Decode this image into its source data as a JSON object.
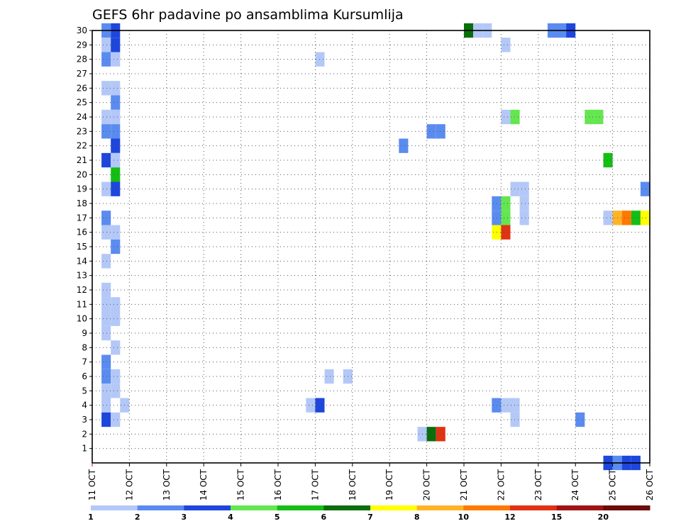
{
  "chart_data": {
    "type": "heatmap",
    "title": "GEFS 6hr padavine po ansamblima Kursumlija",
    "xlabel": "",
    "ylabel": "",
    "x_ticks": [
      "11 OCT",
      "12 OCT",
      "13 OCT",
      "14 OCT",
      "15 OCT",
      "16 OCT",
      "17 OCT",
      "18 OCT",
      "19 OCT",
      "20 OCT",
      "21 OCT",
      "22 OCT",
      "23 OCT",
      "24 OCT",
      "25 OCT",
      "26 OCT"
    ],
    "y_ticks": [
      "1",
      "2",
      "3",
      "4",
      "5",
      "6",
      "7",
      "8",
      "9",
      "10",
      "11",
      "12",
      "13",
      "14",
      "15",
      "16",
      "17",
      "18",
      "19",
      "20",
      "21",
      "22",
      "23",
      "24",
      "25",
      "26",
      "27",
      "28",
      "29",
      "30"
    ],
    "ylim": [
      0,
      30
    ],
    "time_steps_per_day": 4,
    "grid": true,
    "colorbar": {
      "labels": [
        "1",
        "2",
        "3",
        "4",
        "5",
        "6",
        "7",
        "8",
        "10",
        "12",
        "15",
        "20"
      ],
      "colors": [
        "#b4c8f8",
        "#5a8cf0",
        "#1e46dc",
        "#64e650",
        "#14be14",
        "#0a6e0a",
        "#ffff00",
        "#ffb428",
        "#ff7800",
        "#e13214",
        "#a01414",
        "#6e0a0a"
      ]
    },
    "cells": [
      {
        "y": 30,
        "t": 1,
        "c": 2
      },
      {
        "y": 30,
        "t": 2,
        "c": 3
      },
      {
        "y": 30,
        "t": 40,
        "c": 6
      },
      {
        "y": 30,
        "t": 41,
        "c": 1
      },
      {
        "y": 30,
        "t": 42,
        "c": 1
      },
      {
        "y": 30,
        "t": 49,
        "c": 2
      },
      {
        "y": 30,
        "t": 50,
        "c": 2
      },
      {
        "y": 30,
        "t": 51,
        "c": 3
      },
      {
        "y": 29,
        "t": 1,
        "c": 1
      },
      {
        "y": 29,
        "t": 2,
        "c": 3
      },
      {
        "y": 29,
        "t": 44,
        "c": 1
      },
      {
        "y": 28,
        "t": 1,
        "c": 2
      },
      {
        "y": 28,
        "t": 2,
        "c": 1
      },
      {
        "y": 28,
        "t": 24,
        "c": 1
      },
      {
        "y": 26,
        "t": 1,
        "c": 1
      },
      {
        "y": 26,
        "t": 2,
        "c": 1
      },
      {
        "y": 25,
        "t": 2,
        "c": 2
      },
      {
        "y": 24,
        "t": 1,
        "c": 1
      },
      {
        "y": 24,
        "t": 2,
        "c": 1
      },
      {
        "y": 24,
        "t": 44,
        "c": 1
      },
      {
        "y": 24,
        "t": 45,
        "c": 4
      },
      {
        "y": 24,
        "t": 53,
        "c": 4
      },
      {
        "y": 24,
        "t": 54,
        "c": 4
      },
      {
        "y": 23,
        "t": 1,
        "c": 2
      },
      {
        "y": 23,
        "t": 2,
        "c": 2
      },
      {
        "y": 23,
        "t": 36,
        "c": 2
      },
      {
        "y": 23,
        "t": 37,
        "c": 2
      },
      {
        "y": 22,
        "t": 2,
        "c": 3
      },
      {
        "y": 22,
        "t": 33,
        "c": 2
      },
      {
        "y": 21,
        "t": 1,
        "c": 3
      },
      {
        "y": 21,
        "t": 2,
        "c": 1
      },
      {
        "y": 21,
        "t": 55,
        "c": 5
      },
      {
        "y": 20,
        "t": 2,
        "c": 5
      },
      {
        "y": 19,
        "t": 1,
        "c": 1
      },
      {
        "y": 19,
        "t": 2,
        "c": 3
      },
      {
        "y": 19,
        "t": 45,
        "c": 1
      },
      {
        "y": 19,
        "t": 46,
        "c": 1
      },
      {
        "y": 19,
        "t": 59,
        "c": 2
      },
      {
        "y": 18,
        "t": 43,
        "c": 2
      },
      {
        "y": 18,
        "t": 44,
        "c": 4
      },
      {
        "y": 18,
        "t": 46,
        "c": 1
      },
      {
        "y": 17,
        "t": 1,
        "c": 2
      },
      {
        "y": 17,
        "t": 43,
        "c": 2
      },
      {
        "y": 17,
        "t": 44,
        "c": 4
      },
      {
        "y": 17,
        "t": 46,
        "c": 1
      },
      {
        "y": 17,
        "t": 55,
        "c": 1
      },
      {
        "y": 17,
        "t": 56,
        "c": 8
      },
      {
        "y": 17,
        "t": 57,
        "c": 9
      },
      {
        "y": 17,
        "t": 58,
        "c": 5
      },
      {
        "y": 17,
        "t": 59,
        "c": 7
      },
      {
        "y": 16,
        "t": 1,
        "c": 1
      },
      {
        "y": 16,
        "t": 2,
        "c": 1
      },
      {
        "y": 16,
        "t": 43,
        "c": 7
      },
      {
        "y": 16,
        "t": 44,
        "c": 10
      },
      {
        "y": 15,
        "t": 2,
        "c": 2
      },
      {
        "y": 14,
        "t": 1,
        "c": 1
      },
      {
        "y": 12,
        "t": 1,
        "c": 1
      },
      {
        "y": 11,
        "t": 1,
        "c": 1
      },
      {
        "y": 11,
        "t": 2,
        "c": 1
      },
      {
        "y": 10,
        "t": 1,
        "c": 1
      },
      {
        "y": 10,
        "t": 2,
        "c": 1
      },
      {
        "y": 9,
        "t": 1,
        "c": 1
      },
      {
        "y": 8,
        "t": 2,
        "c": 1
      },
      {
        "y": 7,
        "t": 1,
        "c": 2
      },
      {
        "y": 6,
        "t": 1,
        "c": 2
      },
      {
        "y": 6,
        "t": 2,
        "c": 1
      },
      {
        "y": 6,
        "t": 25,
        "c": 1
      },
      {
        "y": 6,
        "t": 27,
        "c": 1
      },
      {
        "y": 5,
        "t": 1,
        "c": 1
      },
      {
        "y": 5,
        "t": 2,
        "c": 1
      },
      {
        "y": 4,
        "t": 1,
        "c": 1
      },
      {
        "y": 4,
        "t": 3,
        "c": 1
      },
      {
        "y": 4,
        "t": 23,
        "c": 1
      },
      {
        "y": 4,
        "t": 24,
        "c": 3
      },
      {
        "y": 4,
        "t": 43,
        "c": 2
      },
      {
        "y": 4,
        "t": 44,
        "c": 1
      },
      {
        "y": 4,
        "t": 45,
        "c": 1
      },
      {
        "y": 3,
        "t": 1,
        "c": 3
      },
      {
        "y": 3,
        "t": 2,
        "c": 1
      },
      {
        "y": 3,
        "t": 45,
        "c": 1
      },
      {
        "y": 3,
        "t": 52,
        "c": 2
      },
      {
        "y": 2,
        "t": 35,
        "c": 1
      },
      {
        "y": 2,
        "t": 36,
        "c": 6
      },
      {
        "y": 2,
        "t": 37,
        "c": 10
      },
      {
        "y": 0,
        "t": 55,
        "c": 3
      },
      {
        "y": 0,
        "t": 56,
        "c": 2
      },
      {
        "y": 0,
        "t": 57,
        "c": 3
      },
      {
        "y": 0,
        "t": 58,
        "c": 3
      }
    ]
  }
}
